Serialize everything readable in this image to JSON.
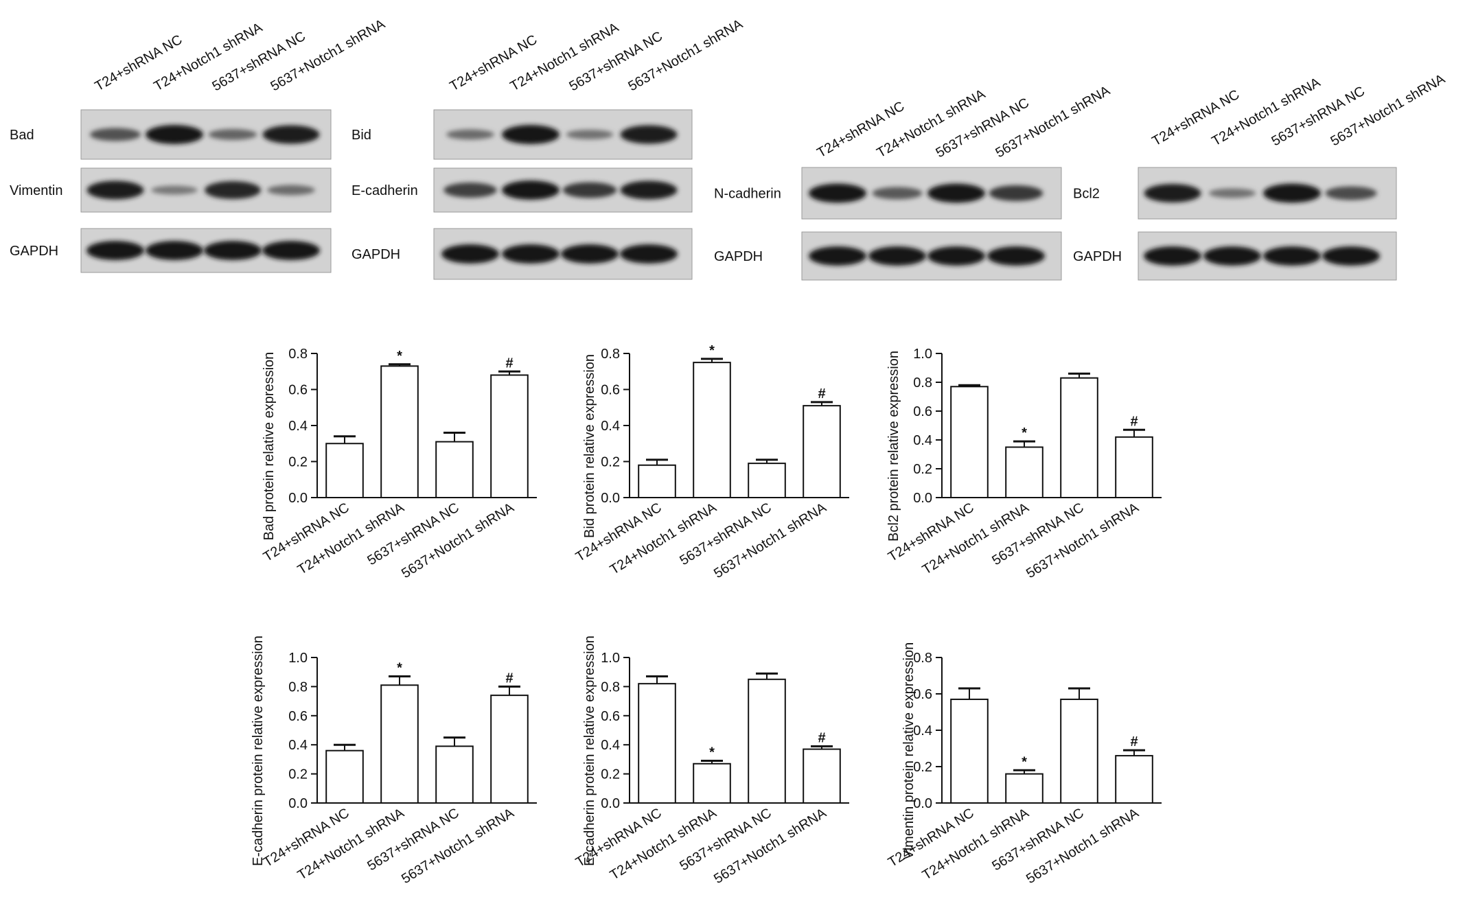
{
  "lanes": [
    "T24+shRNA NC",
    "T24+Notch1 shRNA",
    "5637+shRNA NC",
    "5637+Notch1 shRNA"
  ],
  "blots": [
    {
      "rows": [
        {
          "label": "Bad",
          "intensity": [
            0.55,
            1.0,
            0.4,
            0.95
          ]
        },
        {
          "label": "Vimentin",
          "intensity": [
            0.95,
            0.25,
            0.9,
            0.35
          ]
        },
        {
          "label": "GAPDH",
          "intensity": [
            1.0,
            1.0,
            1.0,
            1.0
          ]
        }
      ]
    },
    {
      "rows": [
        {
          "label": "Bid",
          "intensity": [
            0.35,
            1.0,
            0.3,
            0.95
          ]
        },
        {
          "label": "E-cadherin",
          "intensity": [
            0.7,
            1.0,
            0.75,
            0.95
          ]
        },
        {
          "label": "GAPDH",
          "intensity": [
            1.0,
            1.0,
            1.0,
            1.0
          ]
        }
      ]
    },
    {
      "rows": [
        {
          "label": "N-cadherin",
          "intensity": [
            1.0,
            0.5,
            1.0,
            0.75
          ]
        },
        {
          "label": "GAPDH",
          "intensity": [
            1.0,
            1.0,
            1.0,
            1.0
          ]
        }
      ]
    },
    {
      "rows": [
        {
          "label": "Bcl2",
          "intensity": [
            0.95,
            0.3,
            1.0,
            0.6
          ]
        },
        {
          "label": "GAPDH",
          "intensity": [
            1.0,
            1.0,
            1.0,
            1.0
          ]
        }
      ]
    }
  ],
  "chart_data": [
    {
      "type": "bar",
      "categories": [
        "T24+shRNA NC",
        "T24+Notch1 shRNA",
        "5637+shRNA NC",
        "5637+Notch1 shRNA"
      ],
      "values": [
        0.3,
        0.73,
        0.31,
        0.68
      ],
      "errors": [
        0.04,
        0.01,
        0.05,
        0.02
      ],
      "annotations": [
        "",
        "*",
        "",
        "#"
      ],
      "ylabel": "Bad protein relative expression",
      "ylim": [
        0,
        0.8
      ],
      "yticks": [
        "0.0",
        "0.2",
        "0.4",
        "0.6",
        "0.8"
      ]
    },
    {
      "type": "bar",
      "categories": [
        "T24+shRNA NC",
        "T24+Notch1 shRNA",
        "5637+shRNA NC",
        "5637+Notch1 shRNA"
      ],
      "values": [
        0.18,
        0.75,
        0.19,
        0.51
      ],
      "errors": [
        0.03,
        0.02,
        0.02,
        0.02
      ],
      "annotations": [
        "",
        "*",
        "",
        "#"
      ],
      "ylabel": "Bid protein relative expression",
      "ylim": [
        0,
        0.8
      ],
      "yticks": [
        "0.0",
        "0.2",
        "0.4",
        "0.6",
        "0.8"
      ]
    },
    {
      "type": "bar",
      "categories": [
        "T24+shRNA NC",
        "T24+Notch1 shRNA",
        "5637+shRNA NC",
        "5637+Notch1 shRNA"
      ],
      "values": [
        0.77,
        0.35,
        0.83,
        0.42
      ],
      "errors": [
        0.01,
        0.04,
        0.03,
        0.05
      ],
      "annotations": [
        "",
        "*",
        "",
        "#"
      ],
      "ylabel": "Bcl2 protein relative expression",
      "ylim": [
        0,
        1.0
      ],
      "yticks": [
        "0.0",
        "0.2",
        "0.4",
        "0.6",
        "0.8",
        "1.0"
      ]
    },
    {
      "type": "bar",
      "categories": [
        "T24+shRNA NC",
        "T24+Notch1 shRNA",
        "5637+shRNA NC",
        "5637+Notch1 shRNA"
      ],
      "values": [
        0.36,
        0.81,
        0.39,
        0.74
      ],
      "errors": [
        0.04,
        0.06,
        0.06,
        0.06
      ],
      "annotations": [
        "",
        "*",
        "",
        "#"
      ],
      "ylabel": "E-cadherin protein relative expression",
      "ylim": [
        0,
        1.0
      ],
      "yticks": [
        "0.0",
        "0.2",
        "0.4",
        "0.6",
        "0.8",
        "1.0"
      ]
    },
    {
      "type": "bar",
      "categories": [
        "T24+shRNA NC",
        "T24+Notch1 shRNA",
        "5637+shRNA NC",
        "5637+Notch1 shRNA"
      ],
      "values": [
        0.82,
        0.27,
        0.85,
        0.37
      ],
      "errors": [
        0.05,
        0.02,
        0.04,
        0.02
      ],
      "annotations": [
        "",
        "*",
        "",
        "#"
      ],
      "ylabel": "E-cadherin protein relative expression",
      "ylim": [
        0,
        1.0
      ],
      "yticks": [
        "0.0",
        "0.2",
        "0.4",
        "0.6",
        "0.8",
        "1.0"
      ]
    },
    {
      "type": "bar",
      "categories": [
        "T24+shRNA NC",
        "T24+Notch1 shRNA",
        "5637+shRNA NC",
        "5637+Notch1 shRNA"
      ],
      "values": [
        0.57,
        0.16,
        0.57,
        0.26
      ],
      "errors": [
        0.06,
        0.02,
        0.06,
        0.03
      ],
      "annotations": [
        "",
        "*",
        "",
        "#"
      ],
      "ylabel": "Vimentin protein relative expression",
      "ylim": [
        0,
        0.8
      ],
      "yticks": [
        "0.0",
        "0.2",
        "0.4",
        "0.6",
        "0.8"
      ]
    }
  ]
}
